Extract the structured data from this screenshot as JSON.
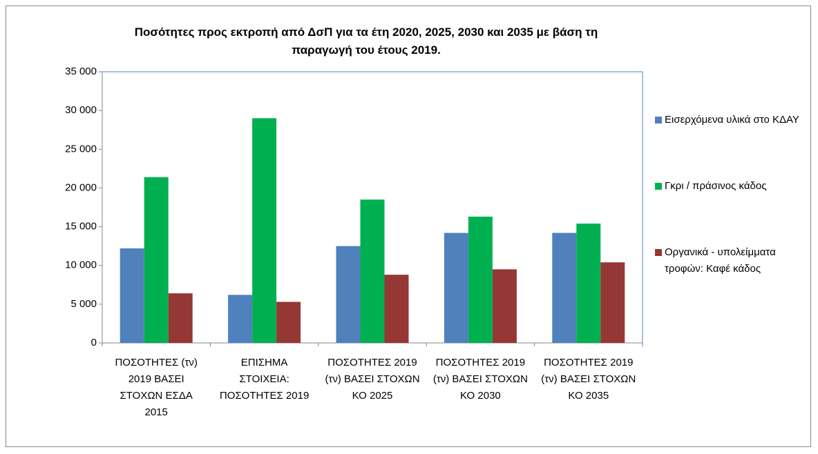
{
  "chart_data": {
    "type": "bar",
    "title": "Ποσότητες προς εκτροπή από ΔσΠ για τα έτη  2020,  2025,  2030 και 2035 με βάση τη παραγωγή του έτους 2019.",
    "categories": [
      "ΠΟΣΟΤΗΤΕΣ (τν) 2019 ΒΑΣΕΙ ΣΤΟΧΩΝ ΕΣΔΑ 2015",
      "ΕΠΙΣΗΜΑ ΣΤΟΙΧΕΙΑ: ΠΟΣΟΤΗΤΕΣ 2019",
      "ΠΟΣΟΤΗΤΕΣ 2019 (τν) ΒΑΣΕΙ ΣΤΟΧΩΝ ΚΟ 2025",
      "ΠΟΣΟΤΗΤΕΣ 2019 (τν) ΒΑΣΕΙ ΣΤΟΧΩΝ ΚΟ 2030",
      "ΠΟΣΟΤΗΤΕΣ 2019 (τν) ΒΑΣΕΙ ΣΤΟΧΩΝ ΚΟ 2035"
    ],
    "series": [
      {
        "name": "Εισερχόμενα υλικά στο ΚΔΑΥ",
        "color": "#4f81bd",
        "values": [
          12200,
          6200,
          12500,
          14200,
          14200
        ]
      },
      {
        "name": "Γκρι / πράσινος κάδος",
        "color": "#00b050",
        "values": [
          21400,
          29000,
          18500,
          16300,
          15400
        ]
      },
      {
        "name": "Οργανικά - υπολείμματα τροφών: Καφέ κάδος",
        "color": "#953735",
        "values": [
          6400,
          5300,
          8800,
          9500,
          10400
        ]
      }
    ],
    "ylim": [
      0,
      35000
    ],
    "yticks": [
      0,
      {
        "value": 5000,
        "label": "5 000"
      },
      {
        "value": 10000,
        "label": "10 000"
      },
      {
        "value": 15000,
        "label": "15 000"
      },
      {
        "value": 20000,
        "label": "20 000"
      },
      {
        "value": 25000,
        "label": "25 000"
      },
      {
        "value": 30000,
        "label": "30 000"
      },
      {
        "value": 35000,
        "label": "35 000"
      }
    ],
    "grid": false,
    "legend": "right"
  }
}
